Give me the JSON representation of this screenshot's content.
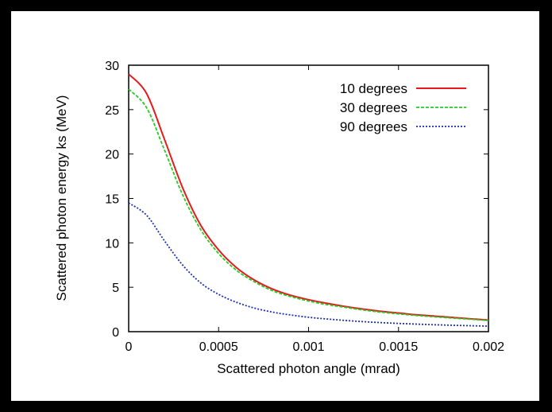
{
  "chart_data": {
    "type": "line",
    "title": "",
    "xlabel": "Scattered photon angle (mrad)",
    "ylabel": "Scattered photon energy ks (MeV)",
    "xlim": [
      0,
      0.002
    ],
    "ylim": [
      0,
      30
    ],
    "x_ticks": [
      0,
      0.0005,
      0.001,
      0.0015,
      0.002
    ],
    "x_tick_labels": [
      "0",
      "0.0005",
      "0.001",
      "0.0015",
      "0.002"
    ],
    "y_ticks": [
      0,
      5,
      10,
      15,
      20,
      25,
      30
    ],
    "y_tick_labels": [
      "0",
      "5",
      "10",
      "15",
      "20",
      "25",
      "30"
    ],
    "grid": false,
    "legend_position": "top-right",
    "x": [
      0,
      0.0001,
      0.0002,
      0.0003,
      0.0004,
      0.0005,
      0.0006,
      0.0007,
      0.0008,
      0.0009,
      0.001,
      0.0011,
      0.0012,
      0.0013,
      0.0014,
      0.0015,
      0.0016,
      0.0017,
      0.0018,
      0.0019,
      0.002
    ],
    "series": [
      {
        "name": "10 degrees",
        "color": "#e41a1c",
        "dash": "solid",
        "values": [
          29.0,
          26.8,
          21.6,
          16.2,
          12.0,
          9.2,
          7.2,
          5.8,
          4.8,
          4.1,
          3.6,
          3.2,
          2.85,
          2.55,
          2.3,
          2.1,
          1.9,
          1.75,
          1.6,
          1.45,
          1.3
        ]
      },
      {
        "name": "30 degrees",
        "color": "#22cc22",
        "dash": "dashed",
        "values": [
          27.3,
          25.2,
          20.4,
          15.4,
          11.5,
          8.8,
          6.9,
          5.6,
          4.6,
          3.95,
          3.45,
          3.05,
          2.75,
          2.45,
          2.2,
          2.0,
          1.82,
          1.67,
          1.53,
          1.4,
          1.25
        ]
      },
      {
        "name": "90 degrees",
        "color": "#1c2fb8",
        "dash": "dotted",
        "values": [
          14.5,
          13.1,
          10.2,
          7.5,
          5.5,
          4.2,
          3.3,
          2.65,
          2.2,
          1.88,
          1.62,
          1.43,
          1.27,
          1.13,
          1.02,
          0.93,
          0.85,
          0.78,
          0.72,
          0.67,
          0.62
        ]
      }
    ]
  }
}
